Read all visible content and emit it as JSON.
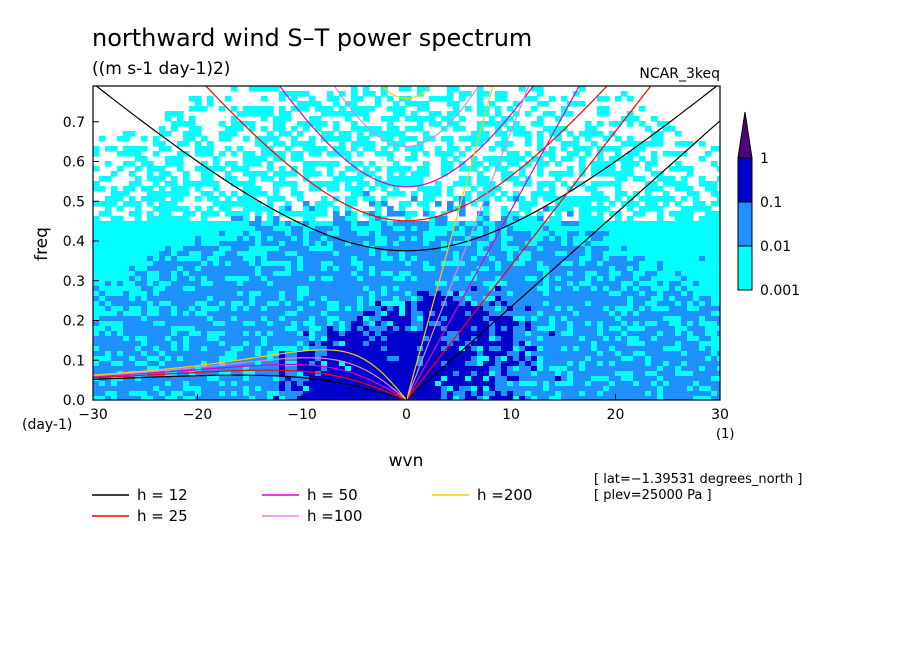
{
  "chart_data": {
    "type": "heatmap",
    "title": "northward wind S–T power spectrum",
    "subtitle": "((m s-1 day-1)2)",
    "model_label": "NCAR_3keq",
    "xlabel": "wvn",
    "ylabel": "freq",
    "x_unit": "(1)",
    "y_unit": "(day-1)",
    "xlim": [
      -30,
      30
    ],
    "ylim": [
      0,
      0.79
    ],
    "x_ticks": [
      -30,
      -20,
      -10,
      0,
      10,
      20,
      30
    ],
    "x_tick_labels": [
      "−30",
      "−20",
      "−10",
      "0",
      "10",
      "20",
      "30"
    ],
    "y_ticks": [
      0.0,
      0.1,
      0.2,
      0.3,
      0.4,
      0.5,
      0.6,
      0.7
    ],
    "y_tick_labels": [
      "0.0",
      "0.1",
      "0.2",
      "0.3",
      "0.4",
      "0.5",
      "0.6",
      "0.7"
    ],
    "colorbar": {
      "levels": [
        0.001,
        0.01,
        0.1,
        1
      ],
      "labels": [
        "0.001",
        "0.01",
        "0.1",
        "1"
      ],
      "colors": [
        "#00ffff",
        "#1e90ff",
        "#0000cd",
        "#4b0082"
      ]
    },
    "dispersion_curves": [
      {
        "label": "h = 12",
        "h": 12,
        "color": "#000000"
      },
      {
        "label": "h = 25",
        "h": 25,
        "color": "#ff0000"
      },
      {
        "label": "h = 50",
        "h": 50,
        "color": "#e000c0"
      },
      {
        "label": "h =100",
        "h": 100,
        "color": "#dd88dd"
      },
      {
        "label": "h =200",
        "h": 200,
        "color": "#ffcc00"
      }
    ],
    "annotations": [
      "[ lat=−1.39531 degrees_north ]",
      "[ plev=25000 Pa ]"
    ]
  }
}
